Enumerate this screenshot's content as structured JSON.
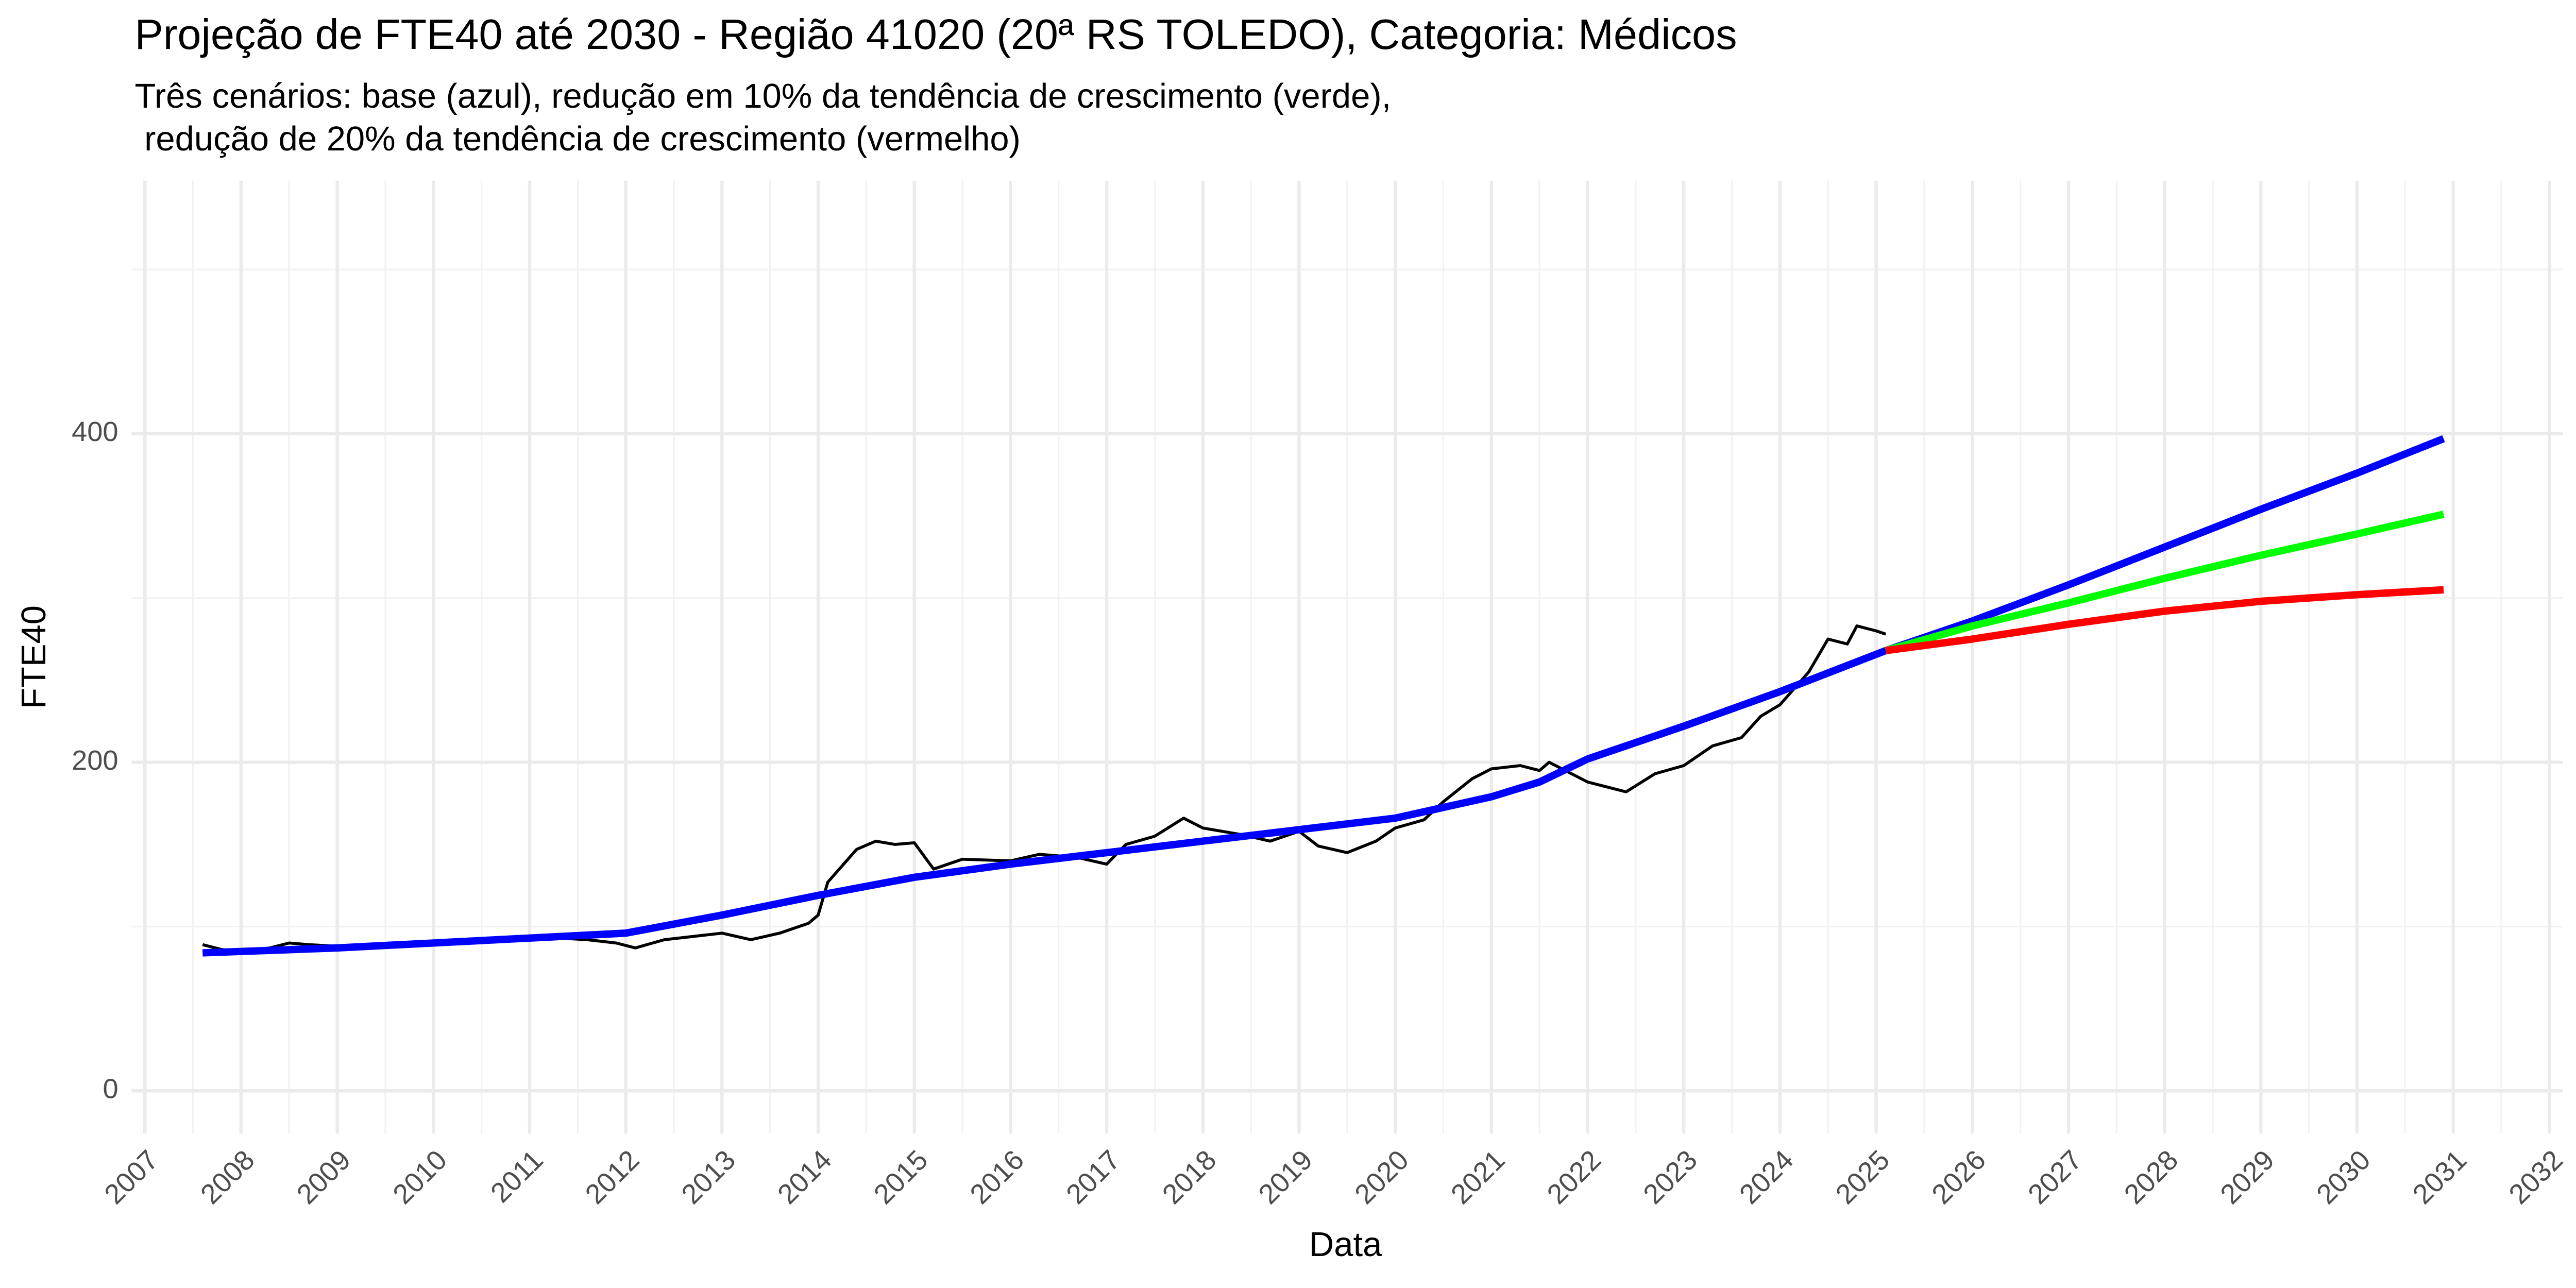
{
  "chart_data": {
    "type": "line",
    "title": "Projeção de FTE40 até 2030 - Região 41020 (20ª RS TOLEDO), Categoria: Médicos",
    "subtitle": [
      "Três cenários: base (azul), redução em 10% da tendência de crescimento (verde),",
      " redução de 20% da tendência de crescimento (vermelho)"
    ],
    "x_label": "Data",
    "y_label": "FTE40",
    "xlim": [
      2006.86,
      2032.14
    ],
    "ylim": [
      -26,
      554
    ],
    "xticks": [
      2007,
      2008,
      2009,
      2010,
      2011,
      2012,
      2013,
      2014,
      2015,
      2016,
      2017,
      2018,
      2019,
      2020,
      2021,
      2022,
      2023,
      2024,
      2025,
      2026,
      2027,
      2028,
      2029,
      2030,
      2031,
      2032
    ],
    "xticks_minor": [
      2007.5,
      2008.5,
      2009.5,
      2010.5,
      2011.5,
      2012.5,
      2013.5,
      2014.5,
      2015.5,
      2016.5,
      2017.5,
      2018.5,
      2019.5,
      2020.5,
      2021.5,
      2022.5,
      2023.5,
      2024.5,
      2025.5,
      2026.5,
      2027.5,
      2028.5,
      2029.5,
      2030.5,
      2031.5
    ],
    "yticks": [
      0,
      200,
      400
    ],
    "yticks_minor": [
      100,
      300,
      500
    ],
    "grid": true,
    "series": [
      {
        "color": "#000000",
        "x": [
          2007.6,
          2007.8,
          2008.0,
          2008.3,
          2008.5,
          2008.7,
          2009.0,
          2009.5,
          2010.0,
          2010.3,
          2010.6,
          2011.0,
          2011.3,
          2011.6,
          2011.9,
          2012.1,
          2012.4,
          2012.7,
          2013.0,
          2013.3,
          2013.6,
          2013.9,
          2014.0,
          2014.1,
          2014.4,
          2014.6,
          2014.8,
          2015.0,
          2015.2,
          2015.5,
          2016.0,
          2016.3,
          2016.7,
          2017.0,
          2017.2,
          2017.5,
          2017.8,
          2018.0,
          2018.4,
          2018.7,
          2019.0,
          2019.2,
          2019.5,
          2019.8,
          2020.0,
          2020.3,
          2020.5,
          2020.8,
          2021.0,
          2021.3,
          2021.5,
          2021.6,
          2022.0,
          2022.2,
          2022.4,
          2022.7,
          2023.0,
          2023.3,
          2023.6,
          2023.8,
          2024.0,
          2024.3,
          2024.5,
          2024.7,
          2024.8,
          2025.0,
          2025.1
        ],
        "values": [
          89,
          86,
          85,
          87,
          90,
          89,
          88,
          88,
          90,
          92,
          93,
          92,
          93,
          92,
          90,
          87,
          92,
          94,
          96,
          92,
          96,
          102,
          107,
          127,
          147,
          152,
          150,
          151,
          135,
          141,
          140,
          144,
          142,
          138,
          150,
          155,
          166,
          160,
          156,
          152,
          158,
          149,
          145,
          152,
          160,
          165,
          176,
          190,
          196,
          198,
          195,
          200,
          188,
          185,
          182,
          193,
          198,
          210,
          215,
          228,
          235,
          255,
          275,
          272,
          283,
          280,
          278
        ]
      },
      {
        "color": "#0000ff",
        "x": [
          2007.6,
          2009,
          2010,
          2011,
          2012,
          2013,
          2014,
          2015,
          2016,
          2017,
          2018,
          2019,
          2020,
          2021,
          2021.5,
          2022,
          2023,
          2024,
          2025.1,
          2026,
          2027,
          2028,
          2029,
          2030,
          2030.9
        ],
        "values": [
          84,
          87,
          90,
          93,
          96,
          107,
          119,
          130,
          138,
          145,
          152,
          159,
          166,
          179,
          188,
          202,
          222,
          243,
          268,
          286,
          308,
          331,
          354,
          376,
          397
        ]
      },
      {
        "color": "#00ff00",
        "x": [
          2025.1,
          2026,
          2027,
          2028,
          2029,
          2030,
          2030.9
        ],
        "values": [
          268,
          283,
          297,
          312,
          326,
          339,
          351
        ]
      },
      {
        "color": "#ff0000",
        "x": [
          2025.1,
          2026,
          2027,
          2028,
          2029,
          2030,
          2030.9
        ],
        "values": [
          268,
          275,
          284,
          292,
          298,
          302,
          305
        ]
      }
    ]
  }
}
